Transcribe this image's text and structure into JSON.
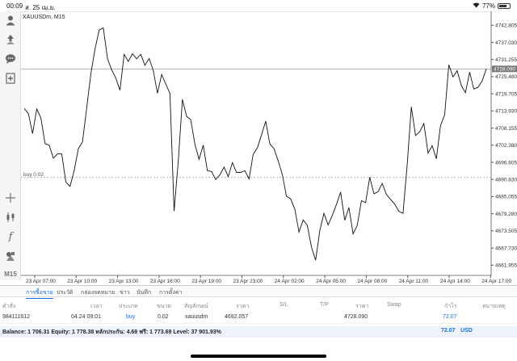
{
  "status_bar": {
    "time": "00:09",
    "date": "ส. 25 เม.ย.",
    "battery": "77%",
    "battery_level": 0.77
  },
  "toolbar": {
    "icons": [
      "account-icon",
      "trade-icon",
      "chat-icon",
      "add-chart-icon",
      "crosshair-icon",
      "candlestick-icon",
      "indicator-icon",
      "objects-icon"
    ],
    "timeframe": "M15"
  },
  "chart": {
    "symbol": "XAUUSDm, M15",
    "current_price": "4728.090",
    "order_line_label": "buy 0.02",
    "colors": {
      "line": "#111111",
      "current_price_bg": "#777777",
      "grid": "#eeeeee",
      "order_line": "#999999"
    }
  },
  "chart_data": {
    "type": "line",
    "title": "XAUUSDm, M15",
    "y_ticks": [
      "4742.805",
      "4737.030",
      "4731.255",
      "4725.480",
      "4719.705",
      "4713.930",
      "4708.155",
      "4702.380",
      "4696.605",
      "4690.830",
      "4685.055",
      "4679.280",
      "4673.505",
      "4667.730",
      "4661.955"
    ],
    "x_ticks": [
      "23 Apr 07:00",
      "23 Apr 10:00",
      "23 Apr 13:00",
      "23 Apr 16:00",
      "23 Apr 19:00",
      "23 Apr 23:00",
      "24 Apr 02:00",
      "24 Apr 05:00",
      "24 Apr 08:00",
      "24 Apr 11:00",
      "24 Apr 14:00",
      "24 Apr 17:00"
    ],
    "ylim": [
      4658.5,
      4747.5
    ],
    "current_price": 4728.09,
    "buy_level": 4691.5,
    "values": [
      4714.8,
      4713.0,
      4706.3,
      4714.6,
      4711.6,
      4702.9,
      4702.4,
      4698.0,
      4699.5,
      4699.5,
      4690.0,
      4688.5,
      4693.8,
      4701.2,
      4703.5,
      4714.9,
      4726.5,
      4734.8,
      4741.2,
      4741.9,
      4731.5,
      4727.8,
      4725.0,
      4720.9,
      4733.0,
      4730.6,
      4733.2,
      4731.5,
      4733.0,
      4729.3,
      4731.6,
      4727.6,
      4719.9,
      4726.2,
      4723.0,
      4719.8,
      4680.2,
      4697.0,
      4717.8,
      4712.1,
      4711.0,
      4702.7,
      4697.6,
      4702.4,
      4693.8,
      4693.5,
      4690.8,
      4692.4,
      4695.0,
      4691.8,
      4696.5,
      4693.2,
      4693.2,
      4693.8,
      4691.0,
      4699.3,
      4701.5,
      4705.8,
      4710.5,
      4702.8,
      4701.2,
      4697.2,
      4692.5,
      4685.2,
      4684.3,
      4680.8,
      4673.1,
      4677.2,
      4675.4,
      4668.0,
      4663.6,
      4673.6,
      4679.4,
      4675.5,
      4678.7,
      4682.4,
      4686.6,
      4677.1,
      4681.4,
      4672.5,
      4675.4,
      4683.7,
      4683.0,
      4691.6,
      4686.0,
      4686.7,
      4689.5,
      4685.8,
      4684.1,
      4682.5,
      4680.1,
      4679.4,
      4695.9,
      4715.3,
      4705.6,
      4706.9,
      4709.7,
      4699.7,
      4702.2,
      4697.8,
      4709.0,
      4712.7,
      4729.5,
      4725.4,
      4727.5,
      4722.5,
      4720.1,
      4727.0,
      4721.3,
      4721.9,
      4724.0,
      4728.1
    ]
  },
  "tabs": [
    "การซื้อขาย",
    "ประวัติ",
    "กล่องจดหมาย",
    "ข่าว",
    "บันทึก",
    "การตั้งค่า"
  ],
  "table": {
    "headers": [
      "คำสั่ง",
      "เวลา",
      "ประเภท",
      "ขนาด",
      "สัญลักษณ์",
      "ราคา",
      "S/L",
      "T/P",
      "ราคา",
      "Swap",
      "กำไร",
      "หมายเหตุ"
    ],
    "row": {
      "order": "984111612",
      "time": "04.24 09:01",
      "type": "buy",
      "size": "0.02",
      "symbol": "xauusdm",
      "open_price": "4692.057",
      "current_price": "4728.090",
      "profit": "72.07"
    },
    "balance_text": "Balance: 1 706.31 Equity: 1 778.38 หลักประกัน: 4.69 ฟรี: 1 773.69 Level: 37 901.93%",
    "balance_profit": "72.07",
    "balance_currency": "USD"
  }
}
